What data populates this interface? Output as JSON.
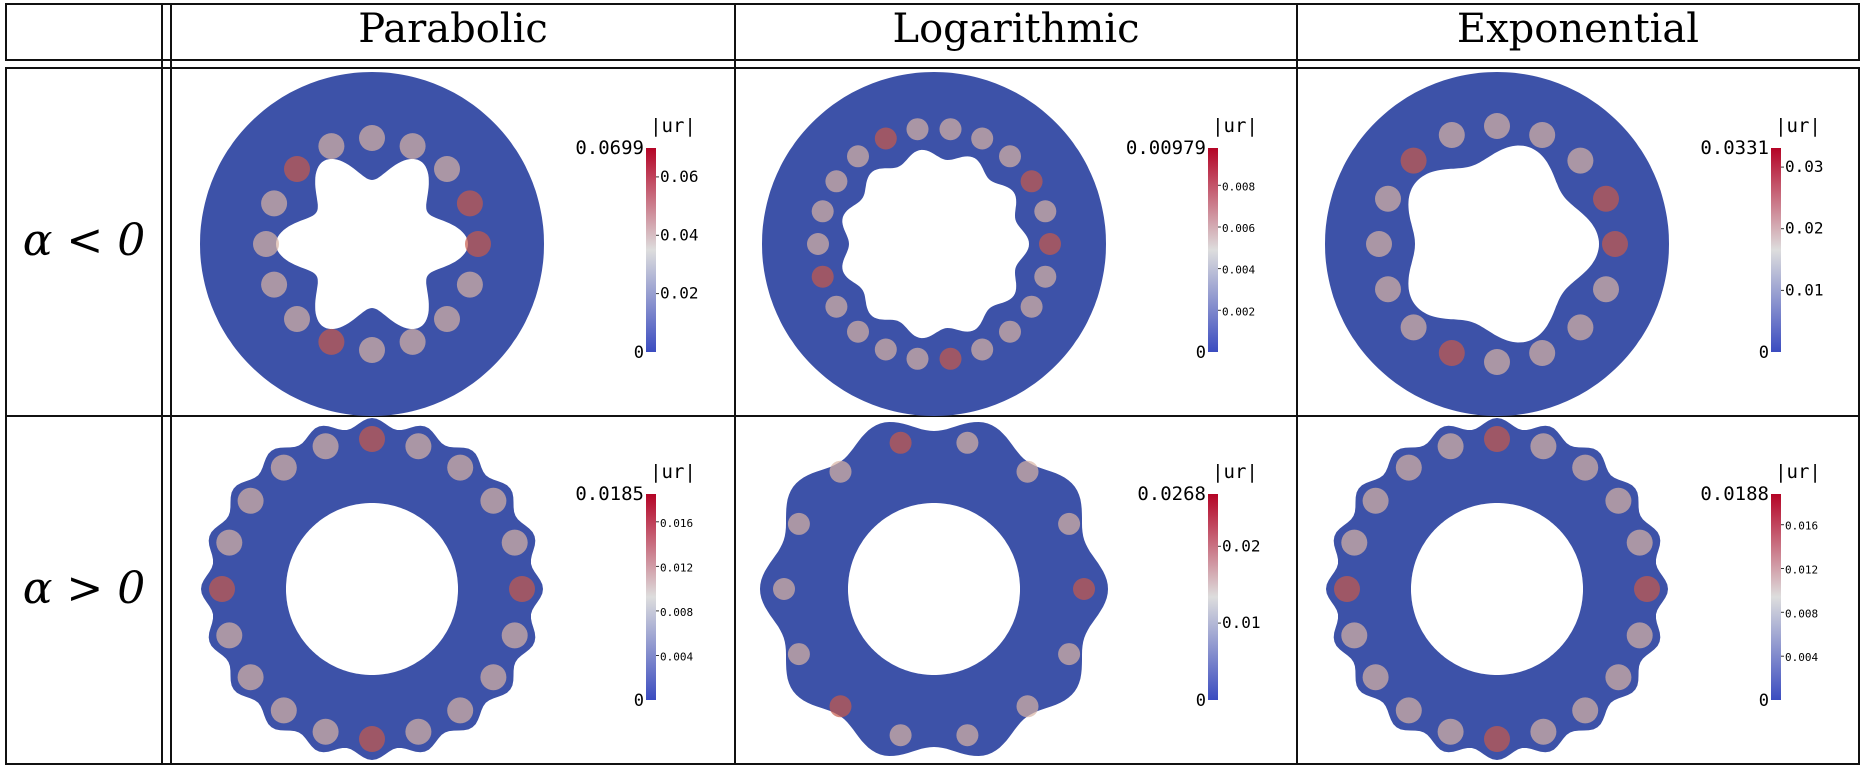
{
  "columns": [
    "Parabolic",
    "Logarithmic",
    "Exponential"
  ],
  "rows": [
    {
      "label": "α < 0",
      "cells": [
        {
          "shape": "inner-star",
          "lobes": 6,
          "ticks": [
            "0.06",
            "0.04",
            "0.02"
          ],
          "tickValues": [
            0.06,
            0.04,
            0.02
          ],
          "max": "0.0699",
          "maxValue": 0.0699,
          "min": "0",
          "bar_label": "|ur|"
        },
        {
          "shape": "inner-star",
          "lobes": 11,
          "ticks": [
            "0.008",
            "0.006",
            "0.004",
            "0.002"
          ],
          "tickValues": [
            0.008,
            0.006,
            0.004,
            0.002
          ],
          "max": "0.00979",
          "maxValue": 0.00979,
          "min": "0",
          "bar_label": "|ur|"
        },
        {
          "shape": "inner-star",
          "lobes": 5,
          "ticks": [
            "0.03",
            "0.02",
            "0.01"
          ],
          "tickValues": [
            0.03,
            0.02,
            0.01
          ],
          "max": "0.0331",
          "maxValue": 0.0331,
          "min": "0",
          "bar_label": "|ur|"
        }
      ]
    },
    {
      "label": "α > 0",
      "cells": [
        {
          "shape": "outer-wavy",
          "lobes": 20,
          "ticks": [
            "0.016",
            "0.012",
            "0.008",
            "0.004"
          ],
          "tickValues": [
            0.016,
            0.012,
            0.008,
            0.004
          ],
          "max": "0.0185",
          "maxValue": 0.0185,
          "min": "0",
          "bar_label": "|ur|"
        },
        {
          "shape": "outer-wavy",
          "lobes": 10,
          "ticks": [
            "0.02",
            "0.01"
          ],
          "tickValues": [
            0.02,
            0.01
          ],
          "max": "0.0268",
          "maxValue": 0.0268,
          "min": "0",
          "bar_label": "|ur|"
        },
        {
          "shape": "outer-wavy",
          "lobes": 20,
          "ticks": [
            "0.016",
            "0.012",
            "0.008",
            "0.004"
          ],
          "tickValues": [
            0.016,
            0.012,
            0.008,
            0.004
          ],
          "max": "0.0188",
          "maxValue": 0.0188,
          "min": "0",
          "bar_label": "|ur|"
        }
      ]
    }
  ],
  "colors": {
    "low": "#3b4cc0",
    "mid": "#dddddd",
    "high": "#b40426",
    "field": "#3d52a8",
    "lines": "#111111"
  }
}
